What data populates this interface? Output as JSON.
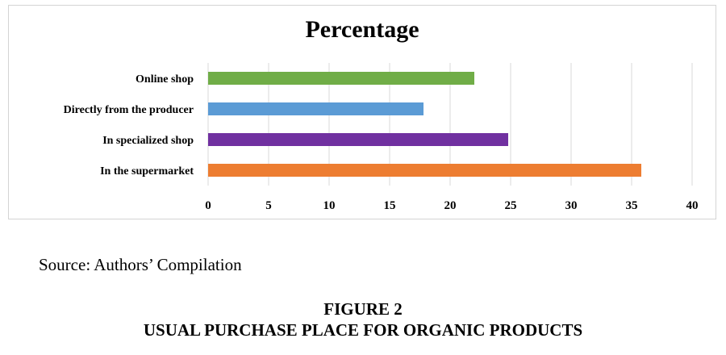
{
  "chart_data": {
    "type": "bar",
    "orientation": "horizontal",
    "title": "Percentage",
    "categories": [
      "Online shop",
      "Directly from the producer",
      "In specialized shop",
      "In the supermarket"
    ],
    "values": [
      22,
      17.8,
      24.8,
      35.8
    ],
    "colors": [
      "#70ad47",
      "#5b9bd5",
      "#7030a0",
      "#ed7d31"
    ],
    "xlim": [
      0,
      40
    ],
    "xticks": [
      "0",
      "5",
      "10",
      "15",
      "20",
      "25",
      "30",
      "35",
      "40"
    ],
    "grid": true,
    "legend": "none"
  },
  "source": "Source: Authors’ Compilation",
  "caption": {
    "figure": "FIGURE 2",
    "title": "USUAL PURCHASE PLACE FOR ORGANIC PRODUCTS"
  }
}
